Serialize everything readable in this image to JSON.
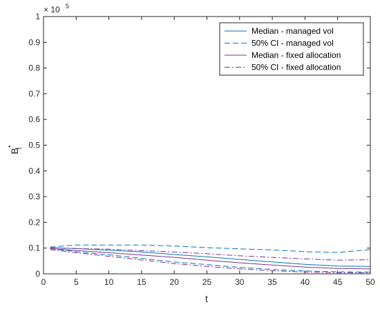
{
  "chart_data": {
    "type": "line",
    "title": "",
    "xlabel": "t",
    "ylabel_base": "B",
    "ylabel_sup": "*",
    "ylabel_sub": "t",
    "exponent_prefix": "× 10",
    "exponent_power": "5",
    "xlim": [
      0,
      50
    ],
    "ylim": [
      0,
      1
    ],
    "y_scale_factor": 100000,
    "xticks": [
      0,
      5,
      10,
      15,
      20,
      25,
      30,
      35,
      40,
      45,
      50
    ],
    "yticks": [
      0,
      0.1,
      0.2,
      0.3,
      0.4,
      0.5,
      0.6,
      0.7,
      0.8,
      0.9,
      1
    ],
    "ytick_labels": [
      "0",
      "0.1",
      "0.2",
      "0.3",
      "0.4",
      "0.5",
      "0.6",
      "0.7",
      "0.8",
      "0.9",
      "1"
    ],
    "grid": false,
    "legend_position": "top-right",
    "x": [
      1,
      5,
      10,
      15,
      20,
      25,
      30,
      35,
      40,
      45,
      50
    ],
    "series": [
      {
        "name": "Median - managed vol",
        "color": "#0072BD",
        "dash": "solid",
        "values": [
          0.102,
          0.098,
          0.092,
          0.085,
          0.075,
          0.066,
          0.056,
          0.046,
          0.037,
          0.03,
          0.029
        ]
      },
      {
        "name": "50% CI - managed vol",
        "color": "#0072BD",
        "dash": "dashed",
        "band": "upper",
        "values": [
          0.104,
          0.112,
          0.112,
          0.112,
          0.108,
          0.102,
          0.097,
          0.093,
          0.086,
          0.083,
          0.094
        ]
      },
      {
        "name": "",
        "color": "#0072BD",
        "dash": "dashed",
        "band": "lower",
        "values": [
          0.098,
          0.086,
          0.074,
          0.06,
          0.046,
          0.036,
          0.025,
          0.017,
          0.011,
          0.008,
          0.007
        ]
      },
      {
        "name": "Median - fixed allocation",
        "color": "#7E2F8E",
        "dash": "solid",
        "values": [
          0.098,
          0.091,
          0.082,
          0.073,
          0.064,
          0.053,
          0.043,
          0.034,
          0.026,
          0.021,
          0.019
        ]
      },
      {
        "name": "50% CI - fixed allocation",
        "color": "#7E2F8E",
        "dash": "dashdot",
        "band": "upper",
        "values": [
          0.101,
          0.098,
          0.096,
          0.09,
          0.085,
          0.078,
          0.07,
          0.064,
          0.058,
          0.053,
          0.055
        ]
      },
      {
        "name": "",
        "color": "#7E2F8E",
        "dash": "dashdot",
        "band": "lower",
        "values": [
          0.094,
          0.082,
          0.068,
          0.054,
          0.04,
          0.029,
          0.019,
          0.012,
          0.007,
          0.004,
          0.004
        ]
      }
    ]
  }
}
